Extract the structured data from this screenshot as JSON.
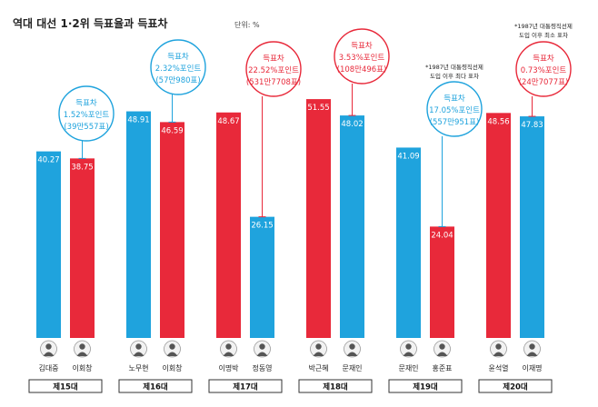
{
  "header": {
    "title": "역대 대선 1·2위 득표율과 득표차",
    "unit": "단위: %"
  },
  "colors": {
    "red": "#e8293a",
    "blue": "#1fa3dd",
    "dark": "#222222"
  },
  "chart_data": {
    "type": "bar",
    "title": "역대 대선 1·2위 득표율과 득표차",
    "unit": "단위: %",
    "ylim": [
      0,
      60
    ],
    "elections": [
      {
        "label": "제15대",
        "candidates": [
          {
            "name": "김대중",
            "value": 40.27,
            "value_label": "40.27",
            "party_color": "blue"
          },
          {
            "name": "이회창",
            "value": 38.75,
            "value_label": "38.75",
            "party_color": "red"
          }
        ],
        "gap": {
          "title": "득표차",
          "points": "1.52%포인트",
          "votes": "(39만557표)",
          "color": "blue"
        }
      },
      {
        "label": "제16대",
        "candidates": [
          {
            "name": "노무현",
            "value": 48.91,
            "value_label": "48.91",
            "party_color": "blue"
          },
          {
            "name": "이회창",
            "value": 46.59,
            "value_label": "46.59",
            "party_color": "red"
          }
        ],
        "gap": {
          "title": "득표차",
          "points": "2.32%포인트",
          "votes": "(57만980표)",
          "color": "blue"
        }
      },
      {
        "label": "제17대",
        "candidates": [
          {
            "name": "이명박",
            "value": 48.67,
            "value_label": "48.67",
            "party_color": "red"
          },
          {
            "name": "정동영",
            "value": 26.15,
            "value_label": "26.15",
            "party_color": "blue"
          }
        ],
        "gap": {
          "title": "득표차",
          "points": "22.52%포인트",
          "votes": "(531만7708표)",
          "color": "red"
        }
      },
      {
        "label": "제18대",
        "candidates": [
          {
            "name": "박근혜",
            "value": 51.55,
            "value_label": "51.55",
            "party_color": "red"
          },
          {
            "name": "문재인",
            "value": 48.02,
            "value_label": "48.02",
            "party_color": "blue"
          }
        ],
        "gap": {
          "title": "득표차",
          "points": "3.53%포인트",
          "votes": "(108만496표)",
          "color": "red"
        }
      },
      {
        "label": "제19대",
        "candidates": [
          {
            "name": "문재인",
            "value": 41.09,
            "value_label": "41.09",
            "party_color": "blue"
          },
          {
            "name": "홍준표",
            "value": 24.04,
            "value_label": "24.04",
            "party_color": "red"
          }
        ],
        "gap": {
          "title": "득표차",
          "points": "17.05%포인트",
          "votes": "(557만951표)",
          "color": "blue"
        },
        "note": [
          "*1987년 대통령직선제",
          "도입 이후 최다 표차"
        ]
      },
      {
        "label": "제20대",
        "candidates": [
          {
            "name": "윤석열",
            "value": 48.56,
            "value_label": "48.56",
            "party_color": "red"
          },
          {
            "name": "이재명",
            "value": 47.83,
            "value_label": "47.83",
            "party_color": "blue"
          }
        ],
        "gap": {
          "title": "득표차",
          "points": "0.73%포인트",
          "votes": "(24만7077표)",
          "color": "red"
        },
        "note": [
          "*1987년 대통령직선제",
          "도입 이후 최소 표차"
        ]
      }
    ]
  }
}
